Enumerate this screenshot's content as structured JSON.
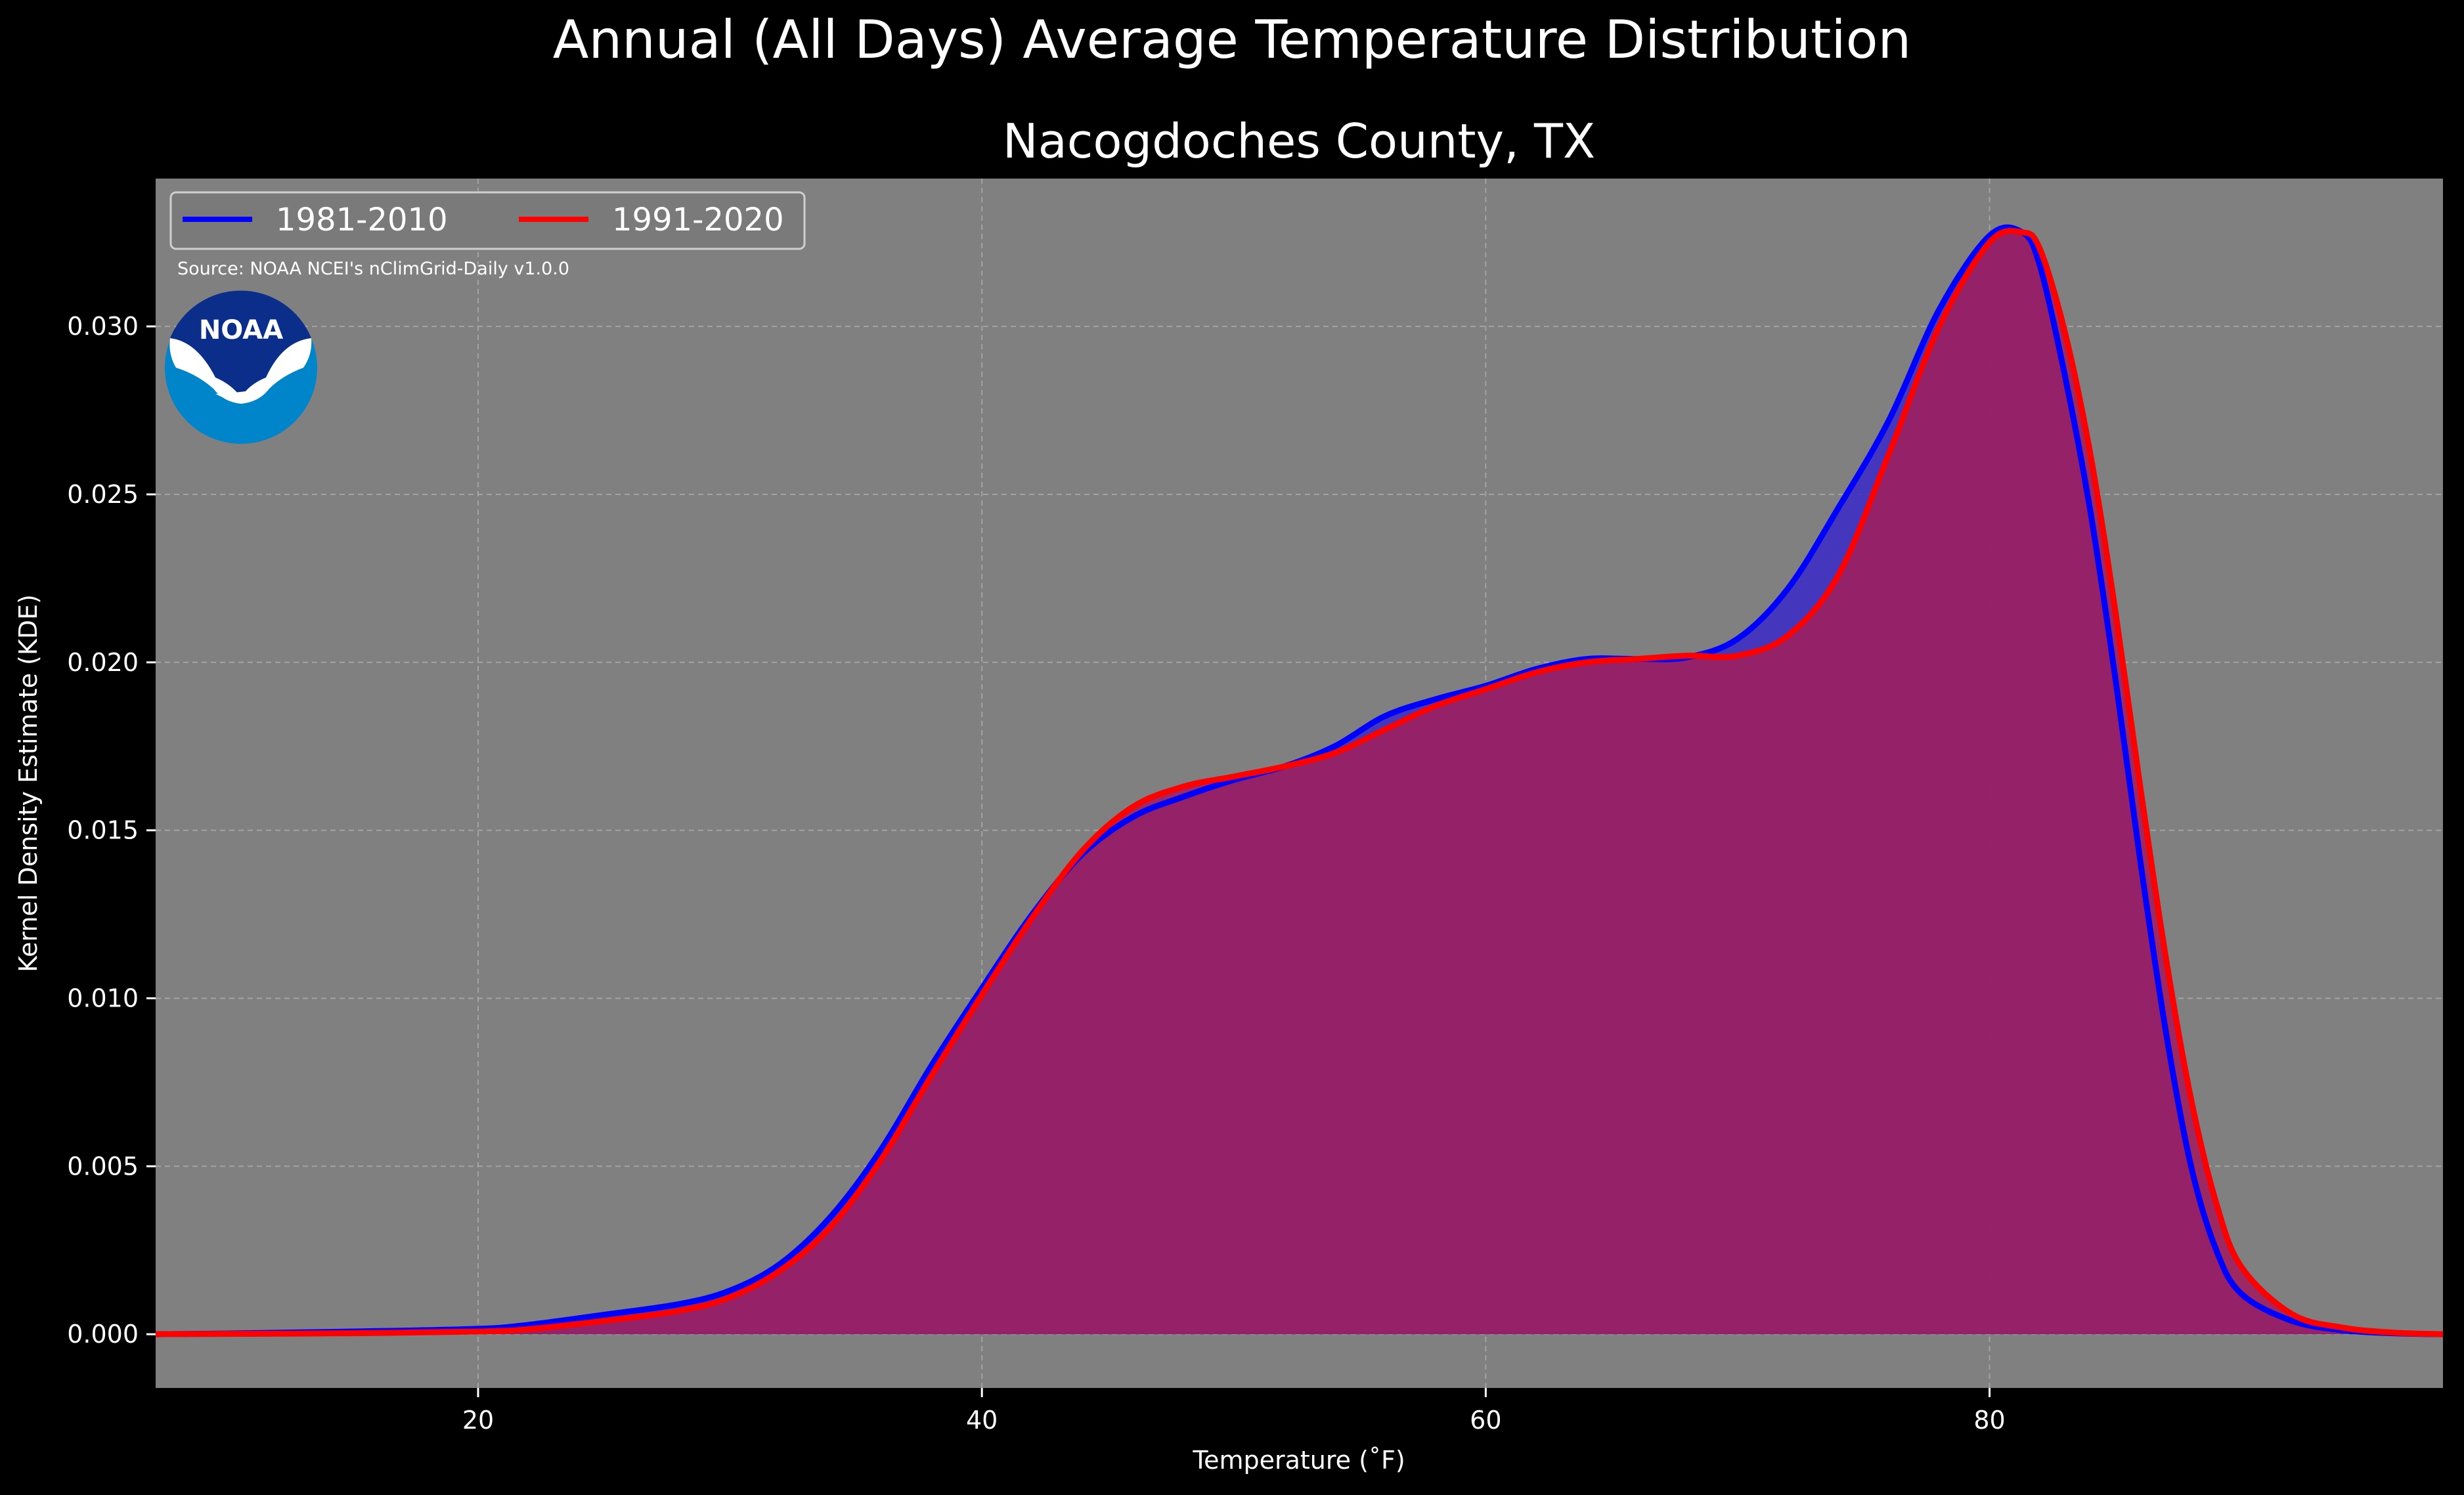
{
  "chart_data": {
    "type": "area",
    "title": "Annual (All Days) Average Temperature Distribution",
    "subtitle": "Nacogdoches County, TX",
    "xlabel": "Temperature (˚F)",
    "ylabel": "Kernel Density Estimate (KDE)",
    "source": "Source: NOAA NCEI's nClimGrid-Daily v1.0.0",
    "logo_text": "NOAA",
    "xlim": [
      7.2,
      98
    ],
    "ylim": [
      -0.0016,
      0.0344
    ],
    "x_ticks": [
      20,
      40,
      60,
      80
    ],
    "y_ticks": [
      0.0,
      0.005,
      0.01,
      0.015,
      0.02,
      0.025,
      0.03
    ],
    "y_tick_labels": [
      "0.000",
      "0.005",
      "0.010",
      "0.015",
      "0.020",
      "0.025",
      "0.030"
    ],
    "grid": true,
    "legend_position": "top-left",
    "colors": {
      "background": "#000000",
      "plot_bg": "#808080",
      "series_1981": "#0000ff",
      "series_1991": "#ff0000",
      "fill_1981": "#3a2ac8",
      "fill_1991": "#9e1f5e"
    },
    "series": [
      {
        "name": "1981-2010",
        "color": "#0000ff",
        "x": [
          7.2,
          10,
          15,
          20,
          22,
          25,
          28,
          30,
          32,
          34,
          36,
          38,
          40,
          42,
          44,
          46,
          48,
          50,
          52,
          54,
          56,
          58,
          60,
          62,
          64,
          66,
          68,
          70,
          72,
          74,
          76,
          78,
          80,
          81.3,
          82,
          83,
          84,
          85,
          86,
          87,
          88,
          89,
          90,
          92,
          94,
          96,
          98
        ],
        "y": [
          0.0,
          2e-05,
          8e-05,
          0.00016,
          0.00028,
          0.00058,
          0.0009,
          0.0013,
          0.0021,
          0.0035,
          0.0055,
          0.008,
          0.0103,
          0.0125,
          0.0143,
          0.0154,
          0.016,
          0.0165,
          0.0169,
          0.0175,
          0.0184,
          0.0189,
          0.0193,
          0.0198,
          0.0201,
          0.0201,
          0.02015,
          0.0207,
          0.0222,
          0.0246,
          0.0272,
          0.0305,
          0.0327,
          0.0328,
          0.0318,
          0.0285,
          0.0245,
          0.0195,
          0.014,
          0.009,
          0.005,
          0.0025,
          0.0012,
          0.0004,
          0.00012,
          3e-05,
          0.0
        ]
      },
      {
        "name": "1991-2020",
        "color": "#ff0000",
        "x": [
          7.2,
          10,
          15,
          20,
          22,
          25,
          28,
          30,
          32,
          34,
          36,
          38,
          40,
          42,
          44,
          46,
          48,
          50,
          52,
          54,
          56,
          58,
          60,
          62,
          64,
          66,
          68,
          70,
          72,
          74,
          76,
          78,
          80,
          81.3,
          82,
          83,
          84,
          85,
          86,
          87,
          88,
          89,
          90,
          92,
          94,
          96,
          98
        ],
        "y": [
          0.0,
          1e-05,
          3e-05,
          8e-05,
          0.00015,
          0.0004,
          0.0007,
          0.0011,
          0.0019,
          0.0032,
          0.0052,
          0.0077,
          0.0101,
          0.0124,
          0.0144,
          0.0157,
          0.0163,
          0.0166,
          0.0169,
          0.0173,
          0.018,
          0.0187,
          0.0192,
          0.0197,
          0.02,
          0.0201,
          0.0202,
          0.0202,
          0.0208,
          0.0226,
          0.0262,
          0.03,
          0.0325,
          0.0328,
          0.0323,
          0.0298,
          0.0262,
          0.0215,
          0.0162,
          0.0112,
          0.007,
          0.0039,
          0.002,
          0.0006,
          0.0002,
          5e-05,
          0.0
        ]
      }
    ]
  }
}
